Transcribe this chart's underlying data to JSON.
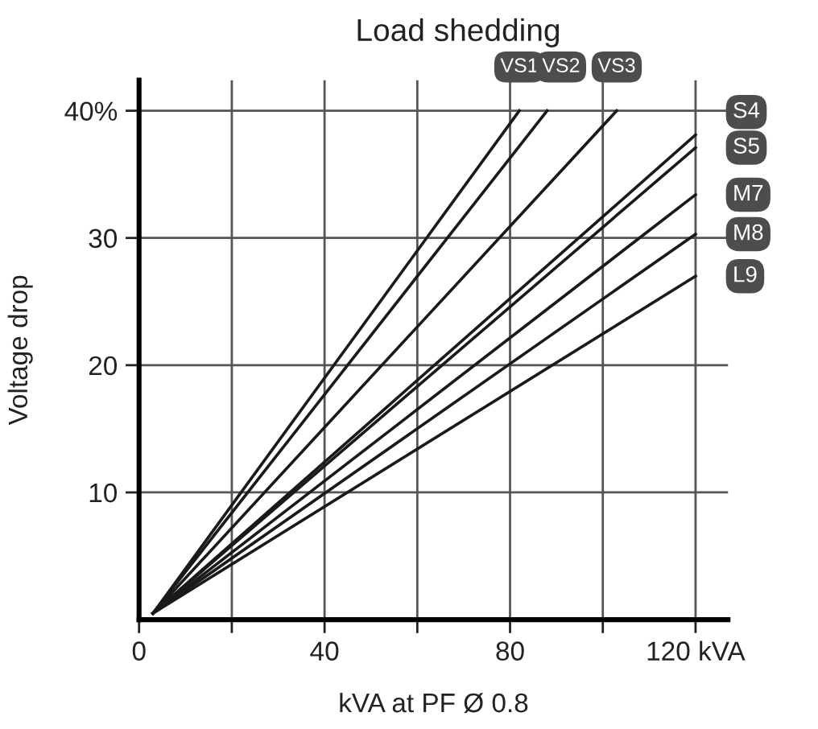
{
  "chart_data": {
    "type": "line",
    "title": "Load shedding",
    "xlabel": "kVA at PF Ø 0.8",
    "ylabel": "Voltage drop",
    "xlim": [
      0,
      127
    ],
    "ylim": [
      0,
      42.4
    ],
    "xticks": [
      0,
      {
        "value": 20,
        "label": null
      },
      40,
      {
        "value": 60,
        "label": null
      },
      80,
      {
        "value": 100,
        "label": null
      },
      {
        "value": 120,
        "label": "120 kVA"
      }
    ],
    "yticks": [
      10,
      20,
      30,
      {
        "value": 40,
        "label": "40%"
      }
    ],
    "grid": true,
    "legend": false,
    "marker": "none",
    "line_style": "solid",
    "series": [
      {
        "name": "VS1",
        "color": "#1a1a1a",
        "x": [
          3,
          82
        ],
        "values": [
          0.5,
          40
        ]
      },
      {
        "name": "VS2",
        "color": "#1a1a1a",
        "x": [
          3,
          88
        ],
        "values": [
          0.5,
          40
        ]
      },
      {
        "name": "VS3",
        "color": "#1a1a1a",
        "x": [
          3,
          103
        ],
        "values": [
          0.5,
          40
        ]
      },
      {
        "name": "S4",
        "color": "#1a1a1a",
        "x": [
          3,
          120
        ],
        "values": [
          0.5,
          38.1
        ]
      },
      {
        "name": "S5",
        "color": "#1a1a1a",
        "x": [
          3,
          120
        ],
        "values": [
          0.5,
          37.1
        ]
      },
      {
        "name": "M7",
        "color": "#1a1a1a",
        "x": [
          3,
          120
        ],
        "values": [
          0.5,
          33.4
        ]
      },
      {
        "name": "M8",
        "color": "#1a1a1a",
        "x": [
          3,
          120
        ],
        "values": [
          0.5,
          30.3
        ]
      },
      {
        "name": "L9",
        "color": "#1a1a1a",
        "x": [
          3,
          120
        ],
        "values": [
          0.5,
          27.0
        ]
      }
    ]
  }
}
